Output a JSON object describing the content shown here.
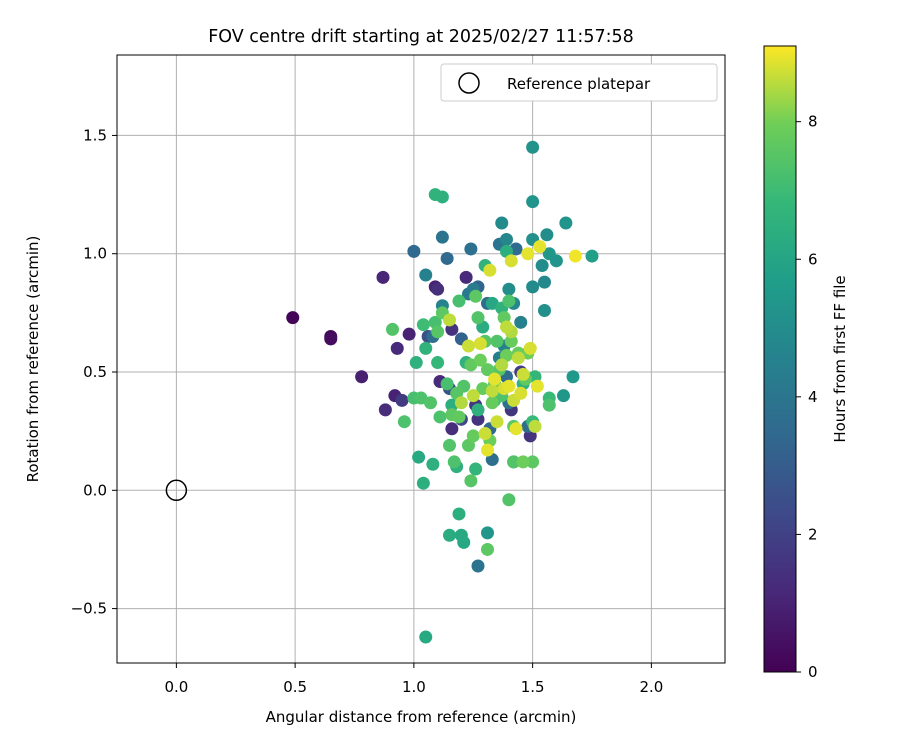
{
  "chart_data": {
    "type": "scatter",
    "title": "FOV centre drift starting at 2025/02/27 11:57:58",
    "xlabel": "Angular distance from reference (arcmin)",
    "ylabel": "Rotation from reference (arcmin)",
    "xlim": [
      -0.25,
      2.31
    ],
    "ylim": [
      -0.73,
      1.84
    ],
    "xticks": [
      0.0,
      0.5,
      1.0,
      1.5,
      2.0
    ],
    "xtick_labels": [
      "0.0",
      "0.5",
      "1.0",
      "1.5",
      "2.0"
    ],
    "yticks": [
      -0.5,
      0.0,
      0.5,
      1.0,
      1.5
    ],
    "ytick_labels": [
      "−0.5",
      "0.0",
      "0.5",
      "1.0",
      "1.5"
    ],
    "grid": true,
    "legend": {
      "placement": "top-right",
      "entries": [
        "Reference platepar"
      ]
    },
    "reference_point": {
      "x": 0.0,
      "y": 0.0,
      "label": "Reference platepar"
    },
    "colorbar": {
      "label": "Hours from first FF file",
      "range": [
        0,
        9.1
      ],
      "ticks": [
        0,
        2,
        4,
        6,
        8
      ],
      "tick_labels": [
        "0",
        "2",
        "4",
        "6",
        "8"
      ],
      "colormap": "viridis"
    },
    "series": [
      {
        "color_by": "hours",
        "points": [
          {
            "x": 0.49,
            "y": 0.73,
            "c": 0.1
          },
          {
            "x": 0.65,
            "y": 0.65,
            "c": 0.2
          },
          {
            "x": 0.65,
            "y": 0.64,
            "c": 0.3
          },
          {
            "x": 0.78,
            "y": 0.48,
            "c": 0.9
          },
          {
            "x": 0.87,
            "y": 0.9,
            "c": 1.1
          },
          {
            "x": 0.88,
            "y": 0.34,
            "c": 1.3
          },
          {
            "x": 0.92,
            "y": 0.4,
            "c": 1.0
          },
          {
            "x": 0.93,
            "y": 0.6,
            "c": 1.2
          },
          {
            "x": 0.95,
            "y": 0.38,
            "c": 1.8
          },
          {
            "x": 0.98,
            "y": 0.66,
            "c": 1.0
          },
          {
            "x": 1.09,
            "y": 0.86,
            "c": 1.0
          },
          {
            "x": 1.1,
            "y": 0.85,
            "c": 1.4
          },
          {
            "x": 1.11,
            "y": 0.46,
            "c": 1.2
          },
          {
            "x": 1.16,
            "y": 0.68,
            "c": 1.5
          },
          {
            "x": 1.16,
            "y": 0.26,
            "c": 1.3
          },
          {
            "x": 1.22,
            "y": 0.9,
            "c": 1.2
          },
          {
            "x": 1.26,
            "y": 0.36,
            "c": 1.7
          },
          {
            "x": 1.27,
            "y": 0.3,
            "c": 1.5
          },
          {
            "x": 1.41,
            "y": 0.34,
            "c": 1.6
          },
          {
            "x": 1.45,
            "y": 0.5,
            "c": 1.8
          },
          {
            "x": 1.49,
            "y": 0.23,
            "c": 1.5
          },
          {
            "x": 1.2,
            "y": 0.3,
            "c": 2.3
          },
          {
            "x": 1.06,
            "y": 0.65,
            "c": 2.5
          },
          {
            "x": 1.15,
            "y": 0.43,
            "c": 2.6
          },
          {
            "x": 1.0,
            "y": 1.01,
            "c": 3.5
          },
          {
            "x": 1.08,
            "y": 0.65,
            "c": 3.7
          },
          {
            "x": 1.12,
            "y": 1.07,
            "c": 3.9
          },
          {
            "x": 1.14,
            "y": 0.98,
            "c": 3.5
          },
          {
            "x": 1.24,
            "y": 1.02,
            "c": 3.8
          },
          {
            "x": 1.27,
            "y": 0.86,
            "c": 3.3
          },
          {
            "x": 1.31,
            "y": 0.79,
            "c": 3.6
          },
          {
            "x": 1.32,
            "y": 0.26,
            "c": 3.4
          },
          {
            "x": 1.33,
            "y": 0.13,
            "c": 3.7
          },
          {
            "x": 1.36,
            "y": 1.04,
            "c": 3.9
          },
          {
            "x": 1.39,
            "y": 0.48,
            "c": 3.6
          },
          {
            "x": 1.4,
            "y": 0.37,
            "c": 3.8
          },
          {
            "x": 1.43,
            "y": 1.02,
            "c": 3.5
          },
          {
            "x": 1.48,
            "y": 0.27,
            "c": 3.6
          },
          {
            "x": 1.27,
            "y": -0.32,
            "c": 3.9
          },
          {
            "x": 1.2,
            "y": 0.64,
            "c": 3.2
          },
          {
            "x": 1.23,
            "y": 0.83,
            "c": 4.2
          },
          {
            "x": 1.25,
            "y": 0.85,
            "c": 4.3
          },
          {
            "x": 1.05,
            "y": 0.91,
            "c": 4.5
          },
          {
            "x": 1.12,
            "y": 0.78,
            "c": 4.6
          },
          {
            "x": 1.36,
            "y": 0.56,
            "c": 4.4
          },
          {
            "x": 1.37,
            "y": 1.13,
            "c": 4.9
          },
          {
            "x": 1.38,
            "y": 0.61,
            "c": 4.6
          },
          {
            "x": 1.39,
            "y": 1.06,
            "c": 4.7
          },
          {
            "x": 1.4,
            "y": 0.85,
            "c": 5.0
          },
          {
            "x": 1.42,
            "y": 0.79,
            "c": 4.8
          },
          {
            "x": 1.45,
            "y": 0.71,
            "c": 4.5
          },
          {
            "x": 1.5,
            "y": 1.45,
            "c": 5.2
          },
          {
            "x": 1.5,
            "y": 1.22,
            "c": 5.3
          },
          {
            "x": 1.5,
            "y": 1.06,
            "c": 5.1
          },
          {
            "x": 1.5,
            "y": 0.86,
            "c": 4.9
          },
          {
            "x": 1.54,
            "y": 0.95,
            "c": 5.0
          },
          {
            "x": 1.55,
            "y": 0.88,
            "c": 4.8
          },
          {
            "x": 1.55,
            "y": 0.76,
            "c": 5.1
          },
          {
            "x": 1.56,
            "y": 1.08,
            "c": 5.0
          },
          {
            "x": 1.57,
            "y": 1.0,
            "c": 5.4
          },
          {
            "x": 1.6,
            "y": 0.97,
            "c": 5.3
          },
          {
            "x": 1.64,
            "y": 1.13,
            "c": 5.3
          },
          {
            "x": 1.63,
            "y": 0.4,
            "c": 5.4
          },
          {
            "x": 1.67,
            "y": 0.48,
            "c": 5.5
          },
          {
            "x": 1.75,
            "y": 0.99,
            "c": 5.8
          },
          {
            "x": 1.31,
            "y": -0.18,
            "c": 5.4
          },
          {
            "x": 1.09,
            "y": 1.25,
            "c": 6.6
          },
          {
            "x": 1.12,
            "y": 1.24,
            "c": 6.5
          },
          {
            "x": 1.04,
            "y": 0.03,
            "c": 6.4
          },
          {
            "x": 1.08,
            "y": 0.11,
            "c": 6.5
          },
          {
            "x": 1.02,
            "y": 0.14,
            "c": 6.2
          },
          {
            "x": 1.01,
            "y": 0.54,
            "c": 6.5
          },
          {
            "x": 1.05,
            "y": 0.6,
            "c": 6.6
          },
          {
            "x": 1.1,
            "y": 0.54,
            "c": 6.8
          },
          {
            "x": 1.15,
            "y": -0.19,
            "c": 6.3
          },
          {
            "x": 1.19,
            "y": -0.1,
            "c": 6.4
          },
          {
            "x": 1.2,
            "y": -0.19,
            "c": 6.2
          },
          {
            "x": 1.21,
            "y": -0.22,
            "c": 6.1
          },
          {
            "x": 1.05,
            "y": -0.62,
            "c": 6.2
          },
          {
            "x": 1.18,
            "y": 0.1,
            "c": 6.5
          },
          {
            "x": 1.26,
            "y": 0.09,
            "c": 6.7
          },
          {
            "x": 1.3,
            "y": 0.95,
            "c": 6.6
          },
          {
            "x": 1.33,
            "y": 0.79,
            "c": 6.1
          },
          {
            "x": 1.16,
            "y": 0.36,
            "c": 6.4
          },
          {
            "x": 1.22,
            "y": 0.54,
            "c": 6.6
          },
          {
            "x": 1.27,
            "y": 0.34,
            "c": 6.5
          },
          {
            "x": 1.29,
            "y": 0.69,
            "c": 6.3
          },
          {
            "x": 1.34,
            "y": 0.38,
            "c": 6.9
          },
          {
            "x": 1.37,
            "y": 0.77,
            "c": 6.6
          },
          {
            "x": 1.39,
            "y": 1.01,
            "c": 6.4
          },
          {
            "x": 1.42,
            "y": 0.12,
            "c": 6.7
          },
          {
            "x": 1.46,
            "y": 0.45,
            "c": 6.6
          },
          {
            "x": 1.5,
            "y": 0.29,
            "c": 6.9
          },
          {
            "x": 1.51,
            "y": 0.48,
            "c": 6.8
          },
          {
            "x": 1.57,
            "y": 0.39,
            "c": 6.9
          },
          {
            "x": 1.57,
            "y": 0.36,
            "c": 7.3
          },
          {
            "x": 0.91,
            "y": 0.68,
            "c": 7.4
          },
          {
            "x": 0.96,
            "y": 0.29,
            "c": 7.3
          },
          {
            "x": 1.0,
            "y": 0.39,
            "c": 7.2
          },
          {
            "x": 1.03,
            "y": 0.39,
            "c": 7.3
          },
          {
            "x": 1.04,
            "y": 0.7,
            "c": 7.0
          },
          {
            "x": 1.07,
            "y": 0.37,
            "c": 7.4
          },
          {
            "x": 1.09,
            "y": 0.71,
            "c": 7.2
          },
          {
            "x": 1.1,
            "y": 0.67,
            "c": 7.5
          },
          {
            "x": 1.11,
            "y": 0.31,
            "c": 7.3
          },
          {
            "x": 1.12,
            "y": 0.75,
            "c": 7.6
          },
          {
            "x": 1.14,
            "y": 0.45,
            "c": 7.2
          },
          {
            "x": 1.15,
            "y": 0.19,
            "c": 7.4
          },
          {
            "x": 1.16,
            "y": 0.32,
            "c": 7.6
          },
          {
            "x": 1.17,
            "y": 0.12,
            "c": 7.3
          },
          {
            "x": 1.18,
            "y": 0.41,
            "c": 7.5
          },
          {
            "x": 1.19,
            "y": 0.8,
            "c": 7.2
          },
          {
            "x": 1.19,
            "y": 0.31,
            "c": 7.7
          },
          {
            "x": 1.21,
            "y": 0.44,
            "c": 7.4
          },
          {
            "x": 1.23,
            "y": 0.19,
            "c": 7.6
          },
          {
            "x": 1.24,
            "y": 0.04,
            "c": 7.5
          },
          {
            "x": 1.24,
            "y": 0.53,
            "c": 7.7
          },
          {
            "x": 1.25,
            "y": 0.23,
            "c": 7.8
          },
          {
            "x": 1.26,
            "y": 0.82,
            "c": 7.6
          },
          {
            "x": 1.27,
            "y": 0.73,
            "c": 7.4
          },
          {
            "x": 1.28,
            "y": 0.55,
            "c": 7.9
          },
          {
            "x": 1.29,
            "y": 0.43,
            "c": 7.8
          },
          {
            "x": 1.3,
            "y": 0.63,
            "c": 7.5
          },
          {
            "x": 1.31,
            "y": 0.51,
            "c": 7.7
          },
          {
            "x": 1.31,
            "y": -0.25,
            "c": 7.6
          },
          {
            "x": 1.32,
            "y": 0.21,
            "c": 7.9
          },
          {
            "x": 1.33,
            "y": 0.37,
            "c": 7.8
          },
          {
            "x": 1.34,
            "y": 0.45,
            "c": 7.6
          },
          {
            "x": 1.35,
            "y": 0.63,
            "c": 7.4
          },
          {
            "x": 1.36,
            "y": 0.51,
            "c": 7.5
          },
          {
            "x": 1.37,
            "y": 0.4,
            "c": 7.3
          },
          {
            "x": 1.38,
            "y": 0.73,
            "c": 7.7
          },
          {
            "x": 1.39,
            "y": 0.57,
            "c": 7.9
          },
          {
            "x": 1.4,
            "y": -0.04,
            "c": 7.4
          },
          {
            "x": 1.4,
            "y": 0.8,
            "c": 7.3
          },
          {
            "x": 1.41,
            "y": 0.63,
            "c": 7.8
          },
          {
            "x": 1.42,
            "y": 0.27,
            "c": 7.6
          },
          {
            "x": 1.42,
            "y": 0.12,
            "c": 7.4
          },
          {
            "x": 1.44,
            "y": 0.58,
            "c": 7.8
          },
          {
            "x": 1.46,
            "y": 0.12,
            "c": 7.9
          },
          {
            "x": 1.47,
            "y": 0.47,
            "c": 7.7
          },
          {
            "x": 1.48,
            "y": 0.58,
            "c": 7.9
          },
          {
            "x": 1.5,
            "y": 0.12,
            "c": 7.6
          },
          {
            "x": 1.15,
            "y": 0.72,
            "c": 8.6
          },
          {
            "x": 1.2,
            "y": 0.37,
            "c": 8.5
          },
          {
            "x": 1.23,
            "y": 0.61,
            "c": 8.7
          },
          {
            "x": 1.25,
            "y": 0.4,
            "c": 8.6
          },
          {
            "x": 1.28,
            "y": 0.62,
            "c": 8.8
          },
          {
            "x": 1.3,
            "y": 0.24,
            "c": 8.7
          },
          {
            "x": 1.31,
            "y": 0.17,
            "c": 8.9
          },
          {
            "x": 1.32,
            "y": 0.93,
            "c": 8.8
          },
          {
            "x": 1.33,
            "y": 0.42,
            "c": 8.6
          },
          {
            "x": 1.34,
            "y": 0.47,
            "c": 8.9
          },
          {
            "x": 1.35,
            "y": 0.29,
            "c": 8.7
          },
          {
            "x": 1.37,
            "y": 0.53,
            "c": 8.5
          },
          {
            "x": 1.38,
            "y": 0.43,
            "c": 8.8
          },
          {
            "x": 1.39,
            "y": 0.69,
            "c": 8.6
          },
          {
            "x": 1.4,
            "y": 0.44,
            "c": 8.9
          },
          {
            "x": 1.41,
            "y": 0.97,
            "c": 8.8
          },
          {
            "x": 1.41,
            "y": 0.67,
            "c": 8.5
          },
          {
            "x": 1.42,
            "y": 0.38,
            "c": 8.7
          },
          {
            "x": 1.43,
            "y": 0.26,
            "c": 8.9
          },
          {
            "x": 1.44,
            "y": 0.56,
            "c": 8.6
          },
          {
            "x": 1.45,
            "y": 0.41,
            "c": 8.8
          },
          {
            "x": 1.46,
            "y": 0.49,
            "c": 8.7
          },
          {
            "x": 1.48,
            "y": 1.0,
            "c": 8.9
          },
          {
            "x": 1.49,
            "y": 0.6,
            "c": 8.8
          },
          {
            "x": 1.51,
            "y": 0.27,
            "c": 8.6
          },
          {
            "x": 1.52,
            "y": 0.44,
            "c": 8.9
          },
          {
            "x": 1.53,
            "y": 1.03,
            "c": 8.9
          },
          {
            "x": 1.68,
            "y": 0.99,
            "c": 9.0
          }
        ]
      }
    ]
  }
}
